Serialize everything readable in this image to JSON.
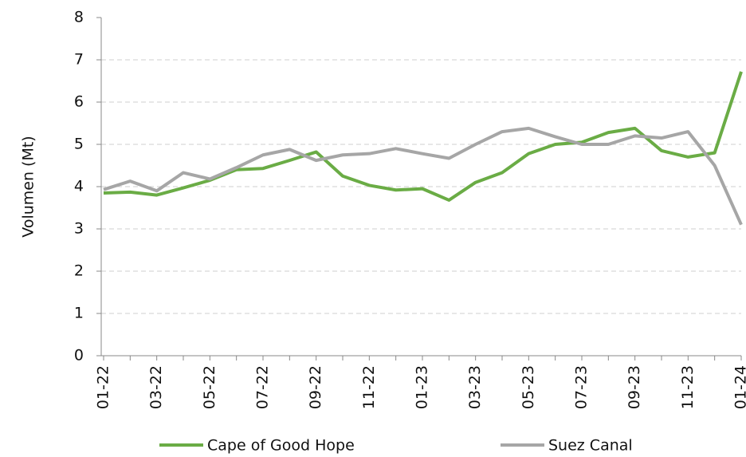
{
  "chart_data": {
    "type": "line",
    "y_label": "Volumen (Mt)",
    "categories": [
      "01-22",
      null,
      "03-22",
      null,
      "05-22",
      null,
      "07-22",
      null,
      "09-22",
      null,
      "11-22",
      null,
      "01-23",
      null,
      "03-23",
      null,
      "05-23",
      null,
      "07-23",
      null,
      "09-23",
      null,
      "11-23",
      null,
      "01-24"
    ],
    "series": [
      {
        "name": "Cape of Good Hope",
        "color": "#6aac45",
        "values": [
          3.85,
          3.87,
          3.8,
          3.97,
          4.15,
          4.4,
          4.43,
          4.62,
          4.82,
          4.25,
          4.03,
          3.92,
          3.95,
          3.68,
          4.1,
          4.33,
          4.78,
          5.0,
          5.05,
          5.28,
          5.38,
          4.85,
          4.7,
          4.8,
          6.72
        ]
      },
      {
        "name": "Suez Canal",
        "color": "#a6a6a6",
        "values": [
          3.93,
          4.13,
          3.9,
          4.33,
          4.18,
          4.45,
          4.75,
          4.88,
          4.62,
          4.75,
          4.78,
          4.9,
          4.78,
          4.67,
          5.0,
          5.3,
          5.38,
          5.18,
          5.0,
          5.0,
          5.2,
          5.15,
          5.3,
          4.5,
          3.1
        ]
      }
    ],
    "ylim": [
      0,
      8
    ],
    "yticks": [
      0,
      1,
      2,
      3,
      4,
      5,
      6,
      7,
      8
    ],
    "grid": true,
    "legend": "bottom"
  }
}
